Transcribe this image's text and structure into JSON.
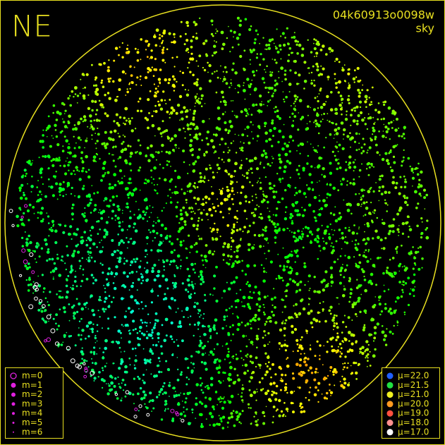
{
  "title": "NE",
  "image_id": "04k60913o0098w",
  "subtitle": "sky",
  "magnitude_legend": [
    "m=0",
    "m=1",
    "m=2",
    "m=3",
    "m=4",
    "m=5",
    "m=6"
  ],
  "brightness_legend": [
    {
      "label": "μ=22.0",
      "color": "#2060ff"
    },
    {
      "label": "μ=21.5",
      "color": "#20e040"
    },
    {
      "label": "μ=21.0",
      "color": "#f0f020"
    },
    {
      "label": "μ=20.0",
      "color": "#ff9a20"
    },
    {
      "label": "μ=19.0",
      "color": "#ff5040"
    },
    {
      "label": "μ=18.0",
      "color": "#ff9090"
    },
    {
      "label": "μ=17.0",
      "color": "#ffffff"
    }
  ]
}
